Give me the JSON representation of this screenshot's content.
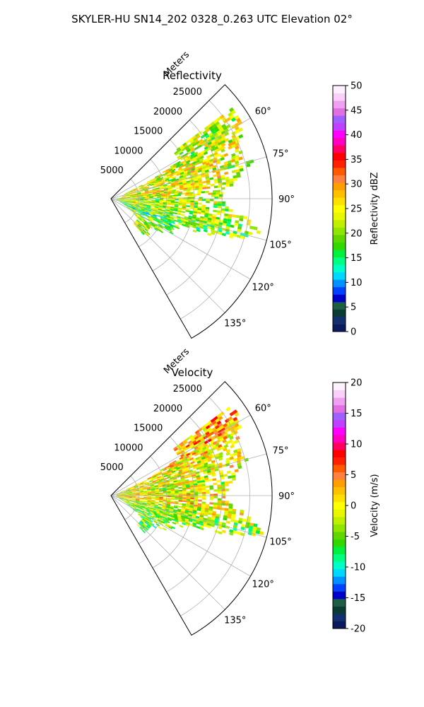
{
  "figure": {
    "title": "SKYLER-HU  SN14_202  0328_0.263 UTC Elevation 02°"
  },
  "chart_data": [
    {
      "type": "polar-sector-heatmap",
      "title": "Reflectivity",
      "r_axis_label": "Meters",
      "r_ticks": [
        "5000",
        "10000",
        "15000",
        "20000",
        "25000"
      ],
      "r_tick_values": [
        5000,
        10000,
        15000,
        20000,
        25000
      ],
      "r_max": 29000,
      "theta_range_deg": [
        45,
        150
      ],
      "theta_ticks": [
        "60°",
        "75°",
        "90°",
        "105°",
        "120°",
        "135°"
      ],
      "theta_tick_values": [
        60,
        75,
        90,
        105,
        120,
        135
      ],
      "grid": true,
      "colorbar": {
        "label": "Reflectivity dBZ",
        "min": 0,
        "max": 50,
        "ticks": [
          "0",
          "5",
          "10",
          "15",
          "20",
          "25",
          "30",
          "35",
          "40",
          "45",
          "50"
        ],
        "tick_values": [
          0,
          5,
          10,
          15,
          20,
          25,
          30,
          35,
          40,
          45,
          50
        ],
        "colors": [
          "#0a1a5c",
          "#12306e",
          "#0b3b34",
          "#1d5e44",
          "#0000c8",
          "#0040ff",
          "#0090ff",
          "#00d8ff",
          "#00ffc8",
          "#00ff80",
          "#00f040",
          "#30d800",
          "#60d800",
          "#90e600",
          "#c0f000",
          "#e8f800",
          "#ffff00",
          "#ffe000",
          "#ffc000",
          "#ffa000",
          "#ff8040",
          "#ff5a00",
          "#ff2000",
          "#ff0000",
          "#ff0060",
          "#ff00c0",
          "#ff00ff",
          "#c040ff",
          "#a060ff",
          "#e070e0",
          "#f0a0f0",
          "#fad0fa",
          "#fff0ff"
        ]
      },
      "field_profile": [
        {
          "theta": 60,
          "r0": 14000,
          "r1": 27000,
          "value": 22
        },
        {
          "theta": 68,
          "r0": 3000,
          "r1": 24000,
          "value": 24
        },
        {
          "theta": 75,
          "r0": 2000,
          "r1": 26000,
          "value": 23
        },
        {
          "theta": 82,
          "r0": 2000,
          "r1": 22000,
          "value": 25
        },
        {
          "theta": 90,
          "r0": 1000,
          "r1": 19000,
          "value": 21
        },
        {
          "theta": 97,
          "r0": 1000,
          "r1": 24000,
          "value": 22
        },
        {
          "theta": 104,
          "r0": 1000,
          "r1": 28000,
          "value": 20
        },
        {
          "theta": 112,
          "r0": 2000,
          "r1": 14000,
          "value": 16
        },
        {
          "theta": 120,
          "r0": 4000,
          "r1": 12000,
          "value": 20
        },
        {
          "theta": 126,
          "r0": 6000,
          "r1": 9000,
          "value": 22
        }
      ]
    },
    {
      "type": "polar-sector-heatmap",
      "title": "Velocity",
      "r_axis_label": "Meters",
      "r_ticks": [
        "5000",
        "10000",
        "15000",
        "20000",
        "25000"
      ],
      "r_tick_values": [
        5000,
        10000,
        15000,
        20000,
        25000
      ],
      "r_max": 29000,
      "theta_range_deg": [
        45,
        150
      ],
      "theta_ticks": [
        "60°",
        "75°",
        "90°",
        "105°",
        "120°",
        "135°"
      ],
      "theta_tick_values": [
        60,
        75,
        90,
        105,
        120,
        135
      ],
      "grid": true,
      "colorbar": {
        "label": "Velocity (m/s)",
        "min": -20,
        "max": 20,
        "ticks": [
          "-20",
          "-15",
          "-10",
          "-5",
          "0",
          "5",
          "10",
          "15",
          "20"
        ],
        "tick_values": [
          -20,
          -15,
          -10,
          -5,
          0,
          5,
          10,
          15,
          20
        ],
        "colors": [
          "#0a1a5c",
          "#12306e",
          "#0b3b34",
          "#1d5e44",
          "#0000c8",
          "#0040ff",
          "#0090ff",
          "#00d8ff",
          "#00ffc8",
          "#00ff80",
          "#00f040",
          "#30d800",
          "#60d800",
          "#90e600",
          "#c0f000",
          "#e8f800",
          "#ffff00",
          "#ffe000",
          "#ffc000",
          "#ffa000",
          "#ff8040",
          "#ff5a00",
          "#ff2000",
          "#ff0000",
          "#ff0060",
          "#ff00c0",
          "#ff00ff",
          "#c040ff",
          "#a060ff",
          "#e070e0",
          "#f0a0f0",
          "#fad0fa",
          "#fff0ff"
        ]
      },
      "field_profile": [
        {
          "theta": 60,
          "r0": 14000,
          "r1": 27000,
          "value": 3
        },
        {
          "theta": 68,
          "r0": 2000,
          "r1": 24000,
          "value": -1
        },
        {
          "theta": 75,
          "r0": 1000,
          "r1": 25000,
          "value": 0
        },
        {
          "theta": 82,
          "r0": 1000,
          "r1": 22000,
          "value": -2
        },
        {
          "theta": 90,
          "r0": 1000,
          "r1": 20000,
          "value": 1
        },
        {
          "theta": 97,
          "r0": 1000,
          "r1": 24000,
          "value": 0
        },
        {
          "theta": 104,
          "r0": 1000,
          "r1": 28000,
          "value": -4
        },
        {
          "theta": 112,
          "r0": 2000,
          "r1": 14000,
          "value": -3
        },
        {
          "theta": 120,
          "r0": 4000,
          "r1": 12000,
          "value": -5
        },
        {
          "theta": 126,
          "r0": 7000,
          "r1": 9000,
          "value": -6
        }
      ]
    }
  ]
}
